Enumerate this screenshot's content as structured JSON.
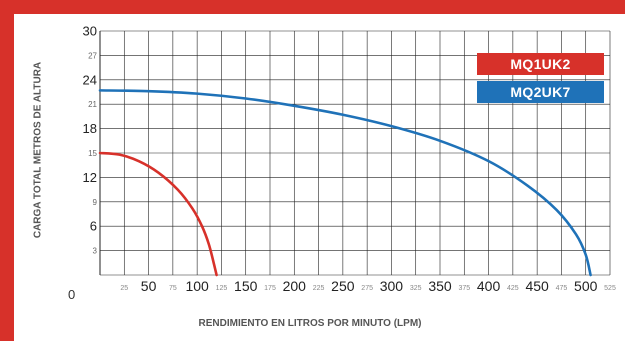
{
  "colors": {
    "brand_red": "#d7312a",
    "series_red": "#d7312a",
    "series_blue": "#1f72b8",
    "grid": "#222222"
  },
  "origin_label": "0",
  "chart_data": {
    "type": "line",
    "title": "",
    "ylabel": "CARGA TOTAL METROS DE ALTURA",
    "xlabel": "RENDIMIENTO EN LITROS POR MINUTO (LPM)",
    "xlim": [
      0,
      525
    ],
    "ylim": [
      0,
      30
    ],
    "grid": true,
    "legend_position": "top-right",
    "y_ticks_major": [
      "6",
      "12",
      "18",
      "24",
      "30"
    ],
    "y_ticks_minor": [
      "3",
      "9",
      "15",
      "21",
      "27"
    ],
    "x_ticks_major": [
      "50",
      "100",
      "150",
      "200",
      "250",
      "300",
      "350",
      "400",
      "450",
      "500"
    ],
    "x_ticks_minor": [
      "25",
      "75",
      "125",
      "175",
      "225",
      "275",
      "325",
      "375",
      "425",
      "475",
      "525"
    ],
    "series": [
      {
        "name": "MQ1UK2",
        "color": "#d7312a",
        "x": [
          0,
          20,
          40,
          60,
          80,
          95,
          105,
          112,
          117,
          120
        ],
        "y": [
          15,
          14.8,
          14,
          12.6,
          10.5,
          8.2,
          6,
          3.8,
          1.5,
          0
        ]
      },
      {
        "name": "MQ2UK7",
        "color": "#1f72b8",
        "x": [
          0,
          50,
          100,
          150,
          200,
          250,
          300,
          350,
          400,
          440,
          470,
          490,
          500,
          505
        ],
        "y": [
          22.7,
          22.6,
          22.3,
          21.7,
          20.8,
          19.7,
          18.3,
          16.5,
          14,
          11,
          8,
          5,
          2.5,
          0
        ]
      }
    ]
  }
}
